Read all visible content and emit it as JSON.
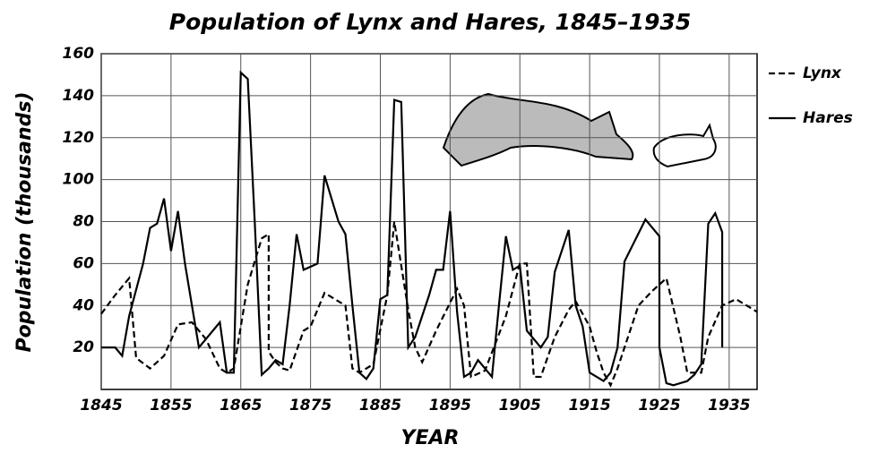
{
  "chart_data": {
    "type": "line",
    "title": "Population of Lynx and Hares, 1845–1935",
    "x_label": "YEAR",
    "y_label": "Population (thousands)",
    "xlim": [
      1845,
      1939
    ],
    "ylim": [
      0,
      160
    ],
    "xticks": [
      1845,
      1855,
      1865,
      1875,
      1885,
      1895,
      1905,
      1915,
      1925,
      1935
    ],
    "yticks": [
      20,
      40,
      60,
      80,
      100,
      120,
      140,
      160
    ],
    "grid": true,
    "legend": "right",
    "series": [
      {
        "name": "Lynx",
        "color": "#000000",
        "dash": "dashed",
        "x": [
          1845,
          1847,
          1849,
          1850,
          1852,
          1854,
          1856,
          1858,
          1860,
          1862,
          1863,
          1864,
          1865,
          1866,
          1868,
          1869,
          1869,
          1870,
          1871,
          1872,
          1874,
          1875,
          1877,
          1880,
          1881,
          1882,
          1884,
          1886,
          1887,
          1889,
          1890,
          1891,
          1893,
          1896,
          1897,
          1898,
          1900,
          1903,
          1905,
          1906,
          1907,
          1908,
          1910,
          1912,
          1913,
          1915,
          1916,
          1917,
          1918,
          1919,
          1922,
          1924,
          1926,
          1928,
          1929,
          1931,
          1932,
          1934,
          1936,
          1939
        ],
        "values": [
          36,
          45,
          53,
          15,
          10,
          16,
          31,
          32,
          24,
          10,
          8,
          10,
          30,
          50,
          72,
          74,
          18,
          13,
          10,
          9,
          28,
          30,
          46,
          40,
          10,
          8,
          12,
          45,
          80,
          38,
          20,
          13,
          28,
          48,
          40,
          6,
          9,
          35,
          60,
          60,
          6,
          6,
          25,
          38,
          42,
          30,
          18,
          8,
          2,
          10,
          40,
          47,
          53,
          25,
          8,
          8,
          25,
          40,
          43,
          37
        ]
      },
      {
        "name": "Hares",
        "color": "#000000",
        "dash": "solid",
        "x": [
          1845,
          1847,
          1848,
          1849,
          1851,
          1852,
          1853,
          1854,
          1855,
          1856,
          1857,
          1859,
          1861,
          1862,
          1863,
          1864,
          1865,
          1866,
          1867,
          1868,
          1869,
          1870,
          1871,
          1872,
          1873,
          1874,
          1876,
          1877,
          1879,
          1880,
          1881,
          1882,
          1883,
          1884,
          1885,
          1886,
          1887,
          1888,
          1889,
          1890,
          1892,
          1893,
          1894,
          1895,
          1896,
          1897,
          1898,
          1899,
          1900,
          1901,
          1902,
          1903,
          1904,
          1905,
          1906,
          1908,
          1909,
          1910,
          1912,
          1913,
          1914,
          1915,
          1917,
          1918,
          1919,
          1920,
          1923,
          1925,
          1925,
          1926,
          1927,
          1929,
          1930,
          1931,
          1932,
          1933,
          1934,
          1934
        ],
        "values": [
          20,
          20,
          16,
          35,
          60,
          77,
          79,
          91,
          66,
          85,
          60,
          20,
          28,
          32,
          8,
          8,
          151,
          148,
          80,
          7,
          10,
          14,
          12,
          40,
          74,
          57,
          60,
          102,
          80,
          74,
          40,
          8,
          5,
          10,
          43,
          45,
          138,
          137,
          20,
          25,
          45,
          57,
          57,
          85,
          37,
          6,
          8,
          14,
          10,
          6,
          40,
          73,
          57,
          59,
          28,
          20,
          25,
          56,
          76,
          40,
          30,
          8,
          4,
          8,
          20,
          61,
          81,
          73,
          20,
          3,
          2,
          4,
          7,
          12,
          79,
          84,
          75,
          20
        ]
      }
    ]
  }
}
